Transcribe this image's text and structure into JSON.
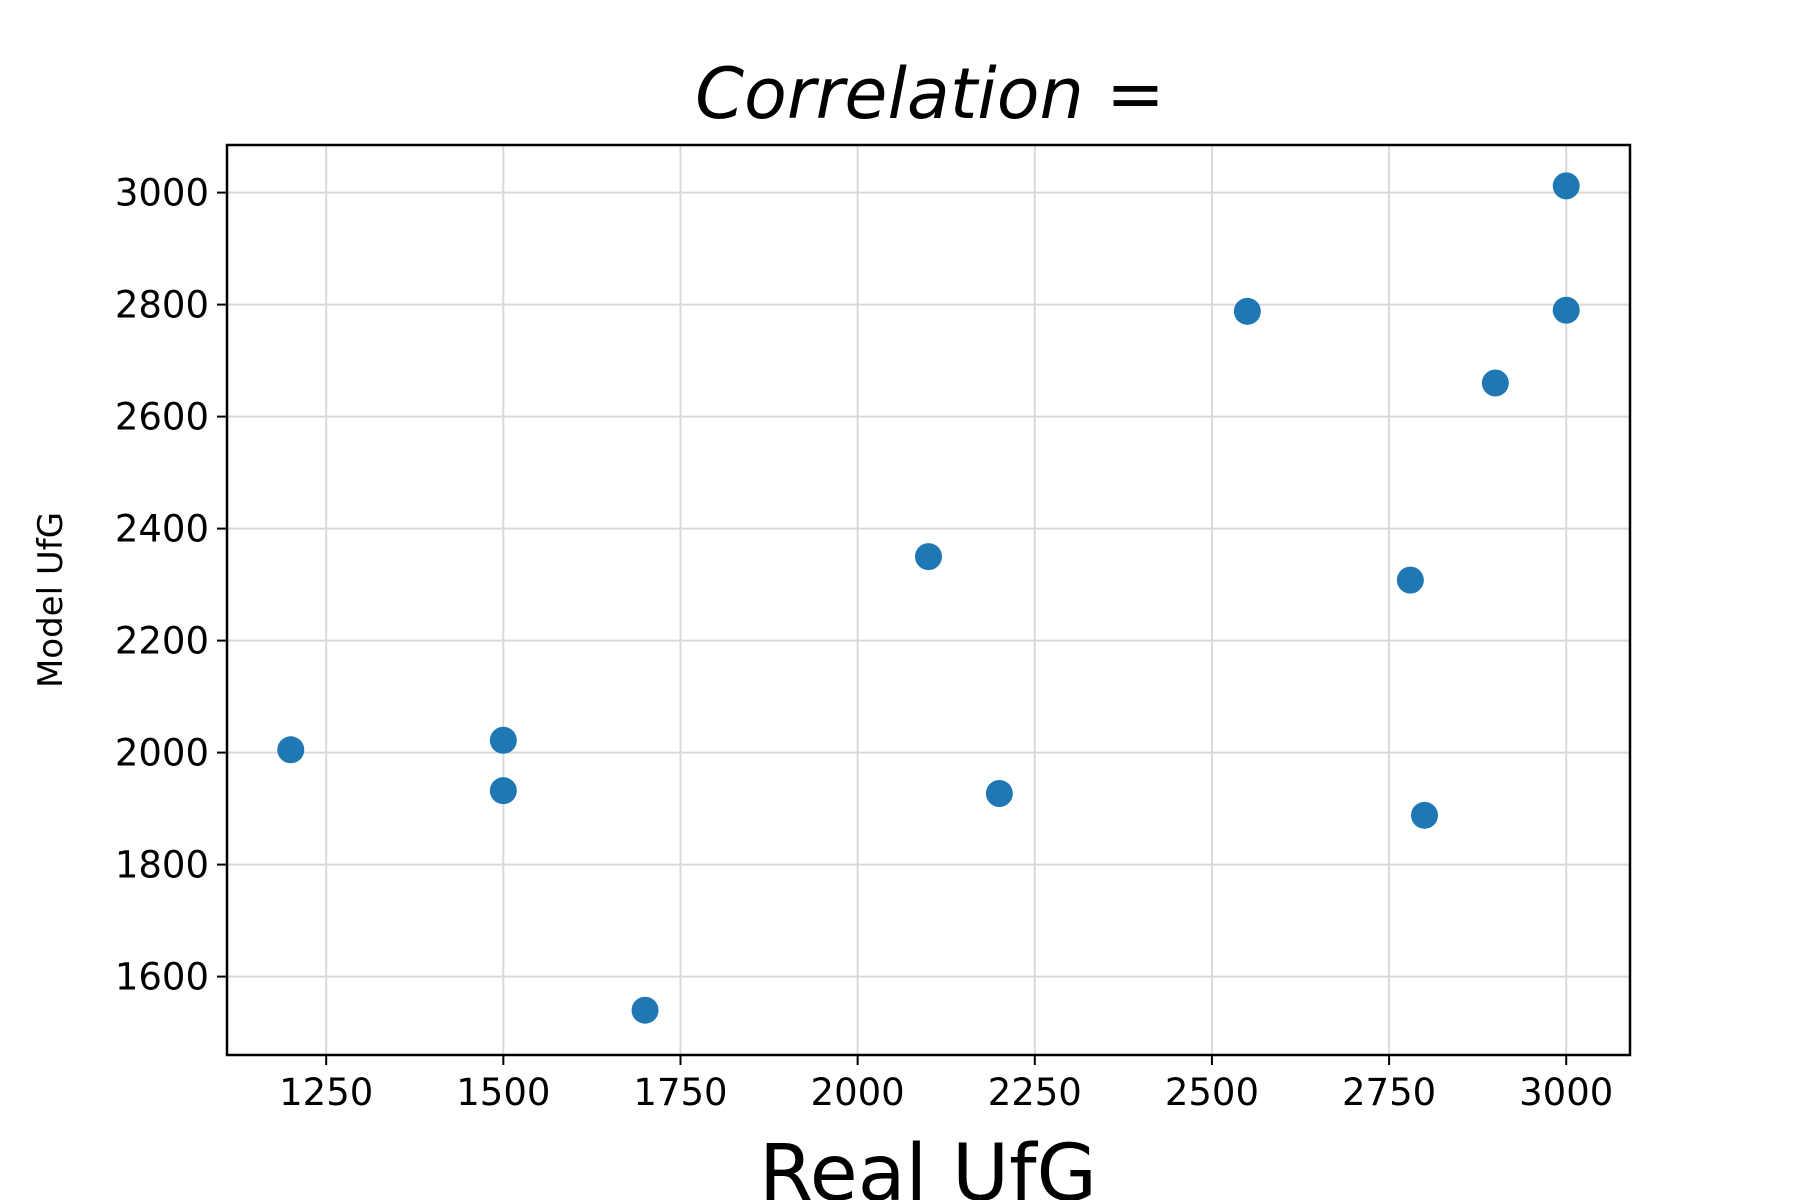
{
  "chart_data": {
    "type": "scatter",
    "title": "Correlation =",
    "xlabel": "Real UfG",
    "ylabel": "Model UfG",
    "xlim": [
      1110,
      3090
    ],
    "ylim": [
      1460,
      3085
    ],
    "xticks": [
      1250,
      1500,
      1750,
      2000,
      2250,
      2500,
      2750,
      3000
    ],
    "yticks": [
      1600,
      1800,
      2000,
      2200,
      2400,
      2600,
      2800,
      3000
    ],
    "grid": true,
    "legend": "none",
    "color": "#1f77b4",
    "series": [
      {
        "points": [
          {
            "x": 1200,
            "y": 2005
          },
          {
            "x": 1500,
            "y": 2022
          },
          {
            "x": 1500,
            "y": 1932
          },
          {
            "x": 1700,
            "y": 1540
          },
          {
            "x": 2100,
            "y": 2350
          },
          {
            "x": 2200,
            "y": 1927
          },
          {
            "x": 2550,
            "y": 2788
          },
          {
            "x": 2780,
            "y": 2308
          },
          {
            "x": 2800,
            "y": 1888
          },
          {
            "x": 2900,
            "y": 2660
          },
          {
            "x": 3000,
            "y": 3012
          },
          {
            "x": 3000,
            "y": 2790
          }
        ]
      }
    ]
  }
}
